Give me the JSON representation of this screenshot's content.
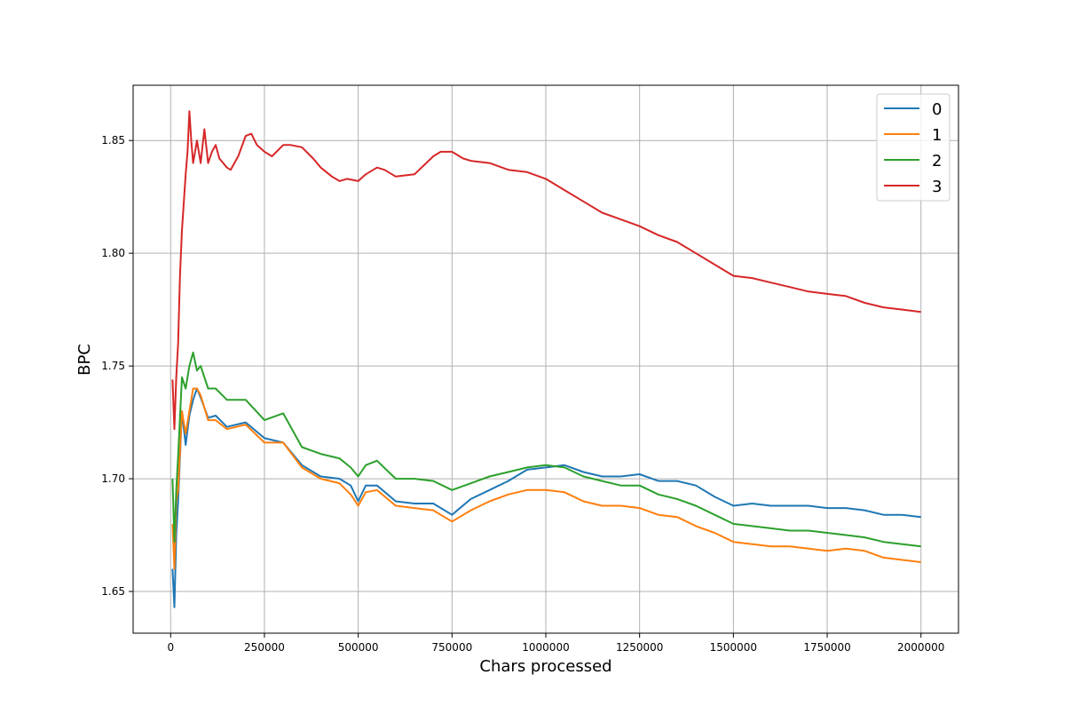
{
  "chart_data": {
    "type": "line",
    "title": "",
    "xlabel": "Chars processed",
    "ylabel": "BPC",
    "xlim": [
      -100000,
      2100000
    ],
    "ylim": [
      1.6315,
      1.8745
    ],
    "xticks": [
      0,
      250000,
      500000,
      750000,
      1000000,
      1250000,
      1500000,
      1750000,
      2000000
    ],
    "xtick_labels": [
      "0",
      "250000",
      "500000",
      "750000",
      "1000000",
      "1250000",
      "1500000",
      "1750000",
      "2000000"
    ],
    "yticks": [
      1.65,
      1.7,
      1.75,
      1.8,
      1.85
    ],
    "ytick_labels": [
      "1.65",
      "1.70",
      "1.75",
      "1.80",
      "1.85"
    ],
    "grid": true,
    "legend_position": "top-right",
    "series": [
      {
        "name": "0",
        "color": "#1f77b4",
        "x": [
          5000,
          10000,
          15000,
          20000,
          30000,
          40000,
          50000,
          60000,
          70000,
          80000,
          100000,
          120000,
          150000,
          200000,
          250000,
          300000,
          350000,
          400000,
          450000,
          480000,
          500000,
          520000,
          550000,
          600000,
          650000,
          700000,
          750000,
          800000,
          850000,
          900000,
          950000,
          1000000,
          1050000,
          1100000,
          1150000,
          1200000,
          1250000,
          1300000,
          1350000,
          1400000,
          1450000,
          1500000,
          1550000,
          1600000,
          1650000,
          1700000,
          1750000,
          1800000,
          1850000,
          1900000,
          1950000,
          2000000
        ],
        "y": [
          1.66,
          1.643,
          1.675,
          1.69,
          1.73,
          1.715,
          1.728,
          1.735,
          1.74,
          1.736,
          1.727,
          1.728,
          1.723,
          1.725,
          1.718,
          1.716,
          1.706,
          1.701,
          1.7,
          1.697,
          1.69,
          1.697,
          1.697,
          1.69,
          1.689,
          1.689,
          1.684,
          1.691,
          1.695,
          1.699,
          1.704,
          1.705,
          1.706,
          1.703,
          1.701,
          1.701,
          1.702,
          1.699,
          1.699,
          1.697,
          1.692,
          1.688,
          1.689,
          1.688,
          1.688,
          1.688,
          1.687,
          1.687,
          1.686,
          1.684,
          1.684,
          1.683
        ]
      },
      {
        "name": "1",
        "color": "#ff7f0e",
        "x": [
          5000,
          10000,
          15000,
          20000,
          30000,
          40000,
          50000,
          60000,
          70000,
          80000,
          100000,
          120000,
          150000,
          200000,
          250000,
          300000,
          350000,
          400000,
          450000,
          480000,
          500000,
          520000,
          550000,
          600000,
          650000,
          700000,
          750000,
          800000,
          850000,
          900000,
          950000,
          1000000,
          1050000,
          1100000,
          1150000,
          1200000,
          1250000,
          1300000,
          1350000,
          1400000,
          1450000,
          1500000,
          1550000,
          1600000,
          1650000,
          1700000,
          1750000,
          1800000,
          1850000,
          1900000,
          1950000,
          2000000
        ],
        "y": [
          1.68,
          1.66,
          1.69,
          1.695,
          1.73,
          1.72,
          1.73,
          1.74,
          1.74,
          1.737,
          1.726,
          1.726,
          1.722,
          1.724,
          1.716,
          1.716,
          1.705,
          1.7,
          1.698,
          1.693,
          1.688,
          1.694,
          1.695,
          1.688,
          1.687,
          1.686,
          1.681,
          1.686,
          1.69,
          1.693,
          1.695,
          1.695,
          1.694,
          1.69,
          1.688,
          1.688,
          1.687,
          1.684,
          1.683,
          1.679,
          1.676,
          1.672,
          1.671,
          1.67,
          1.67,
          1.669,
          1.668,
          1.669,
          1.668,
          1.665,
          1.664,
          1.663
        ]
      },
      {
        "name": "2",
        "color": "#2ca02c",
        "x": [
          5000,
          10000,
          15000,
          20000,
          30000,
          40000,
          50000,
          60000,
          70000,
          80000,
          100000,
          120000,
          150000,
          200000,
          250000,
          300000,
          350000,
          400000,
          450000,
          480000,
          500000,
          520000,
          550000,
          600000,
          650000,
          700000,
          750000,
          800000,
          850000,
          900000,
          950000,
          1000000,
          1050000,
          1100000,
          1150000,
          1200000,
          1250000,
          1300000,
          1350000,
          1400000,
          1450000,
          1500000,
          1550000,
          1600000,
          1650000,
          1700000,
          1750000,
          1800000,
          1850000,
          1900000,
          1950000,
          2000000
        ],
        "y": [
          1.7,
          1.672,
          1.695,
          1.71,
          1.745,
          1.74,
          1.75,
          1.756,
          1.748,
          1.75,
          1.74,
          1.74,
          1.735,
          1.735,
          1.726,
          1.729,
          1.714,
          1.711,
          1.709,
          1.705,
          1.701,
          1.706,
          1.708,
          1.7,
          1.7,
          1.699,
          1.695,
          1.698,
          1.701,
          1.703,
          1.705,
          1.706,
          1.705,
          1.701,
          1.699,
          1.697,
          1.697,
          1.693,
          1.691,
          1.688,
          1.684,
          1.68,
          1.679,
          1.678,
          1.677,
          1.677,
          1.676,
          1.675,
          1.674,
          1.672,
          1.671,
          1.67
        ]
      },
      {
        "name": "3",
        "color": "#d62728",
        "x": [
          5000,
          10000,
          15000,
          20000,
          25000,
          30000,
          40000,
          45000,
          50000,
          55000,
          60000,
          65000,
          70000,
          80000,
          90000,
          100000,
          110000,
          120000,
          130000,
          150000,
          160000,
          180000,
          200000,
          215000,
          230000,
          250000,
          270000,
          300000,
          320000,
          350000,
          380000,
          400000,
          430000,
          450000,
          470000,
          500000,
          520000,
          550000,
          570000,
          600000,
          650000,
          700000,
          720000,
          750000,
          780000,
          800000,
          850000,
          900000,
          950000,
          1000000,
          1050000,
          1100000,
          1150000,
          1200000,
          1250000,
          1300000,
          1350000,
          1400000,
          1450000,
          1500000,
          1550000,
          1600000,
          1650000,
          1700000,
          1750000,
          1800000,
          1850000,
          1900000,
          1950000,
          2000000
        ],
        "y": [
          1.744,
          1.722,
          1.745,
          1.76,
          1.79,
          1.81,
          1.835,
          1.845,
          1.863,
          1.85,
          1.84,
          1.845,
          1.85,
          1.84,
          1.855,
          1.84,
          1.845,
          1.848,
          1.842,
          1.838,
          1.837,
          1.843,
          1.852,
          1.853,
          1.848,
          1.845,
          1.843,
          1.848,
          1.848,
          1.847,
          1.842,
          1.838,
          1.834,
          1.832,
          1.833,
          1.832,
          1.835,
          1.838,
          1.837,
          1.834,
          1.835,
          1.843,
          1.845,
          1.845,
          1.842,
          1.841,
          1.84,
          1.837,
          1.836,
          1.833,
          1.828,
          1.823,
          1.818,
          1.815,
          1.812,
          1.808,
          1.805,
          1.8,
          1.795,
          1.79,
          1.789,
          1.787,
          1.785,
          1.783,
          1.782,
          1.781,
          1.778,
          1.776,
          1.775,
          1.774
        ]
      }
    ]
  }
}
